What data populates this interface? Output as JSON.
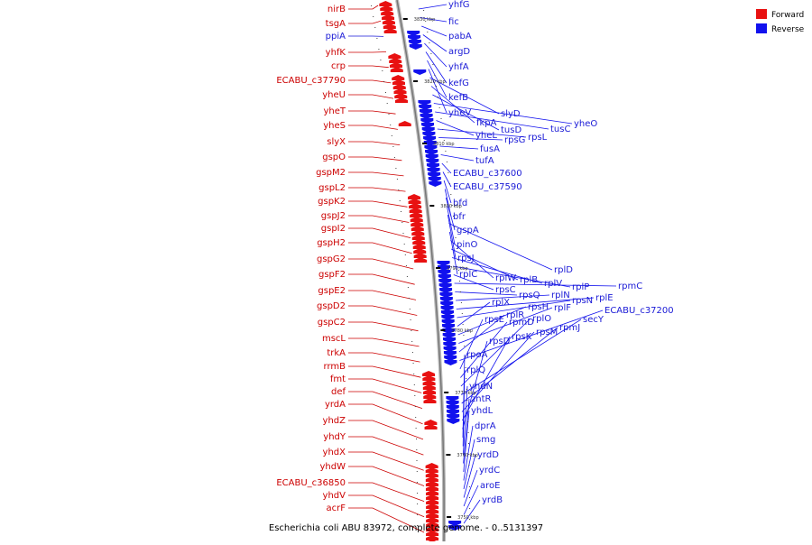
{
  "caption": "Escherichia coli ABU 83972, complete genome. - 0..5131397",
  "legend": {
    "forward": {
      "label": "Forward",
      "color": "#e81111"
    },
    "reverse": {
      "label": "Reverse",
      "color": "#1111ee"
    }
  },
  "ticks": [
    {
      "label": "3830 kbp"
    },
    {
      "label": "3820 kbp"
    },
    {
      "label": "3810 kbp"
    },
    {
      "label": "3800 kbp"
    },
    {
      "label": "3790 kbp"
    },
    {
      "label": "3780 kbp"
    },
    {
      "label": "3770 kbp"
    },
    {
      "label": "3760 kbp"
    },
    {
      "label": "3750 kbp"
    }
  ],
  "forward_genes": [
    "nirB",
    "tsgA",
    "ppiA",
    "yhfK",
    "crp",
    "ECABU_c37790",
    "yheU",
    "yheT",
    "yheS",
    "slyX",
    "gspO",
    "gspM2",
    "gspL2",
    "gspK2",
    "gspJ2",
    "gspI2",
    "gspH2",
    "gspG2",
    "gspF2",
    "gspE2",
    "gspD2",
    "gspC2",
    "mscL",
    "trkA",
    "rrmB",
    "fmt",
    "def",
    "yrdA",
    "yhdZ",
    "yhdY",
    "yhdX",
    "yhdW",
    "ECABU_c36850",
    "yhdV",
    "acrF"
  ],
  "forward_colors": [
    "#cc0000",
    "#cc0000",
    "#1a1ad6",
    "#cc0000",
    "#cc0000",
    "#cc0000",
    "#cc0000",
    "#cc0000",
    "#cc0000",
    "#cc0000",
    "#cc0000",
    "#cc0000",
    "#cc0000",
    "#cc0000",
    "#cc0000",
    "#cc0000",
    "#cc0000",
    "#cc0000",
    "#cc0000",
    "#cc0000",
    "#cc0000",
    "#cc0000",
    "#cc0000",
    "#cc0000",
    "#cc0000",
    "#cc0000",
    "#cc0000",
    "#cc0000",
    "#cc0000",
    "#cc0000",
    "#cc0000",
    "#cc0000",
    "#cc0000",
    "#cc0000",
    "#cc0000"
  ],
  "reverse_genes": [
    "yhfG",
    "fic",
    "pabA",
    "argD",
    "yhfA",
    "kefG",
    "kefB",
    "yheV",
    "slyD",
    "fkpA",
    "tusD",
    "yheO",
    "tusC",
    "yheL",
    "rpsL",
    "rpsG",
    "fusA",
    "tufA",
    "ECABU_c37600",
    "ECABU_c37590",
    "bfd",
    "bfr",
    "gspA",
    "pinO",
    "rpsJ",
    "rplD",
    "rplC",
    "rplW",
    "rplB",
    "rplV",
    "rplP",
    "rpsC",
    "rpmC",
    "rpsQ",
    "rplN",
    "rplE",
    "rpsN",
    "rplX",
    "rpsH",
    "rplF",
    "rplR",
    "ECABU_c37200",
    "rpsE",
    "rpmD",
    "rplO",
    "secY",
    "rpmJ",
    "rpsM",
    "rpsK",
    "rpsD",
    "rpoA",
    "rplQ",
    "yhdN",
    "zntR",
    "yhdL",
    "dprA",
    "smg",
    "yrdD",
    "yrdC",
    "aroE",
    "yrdB"
  ]
}
